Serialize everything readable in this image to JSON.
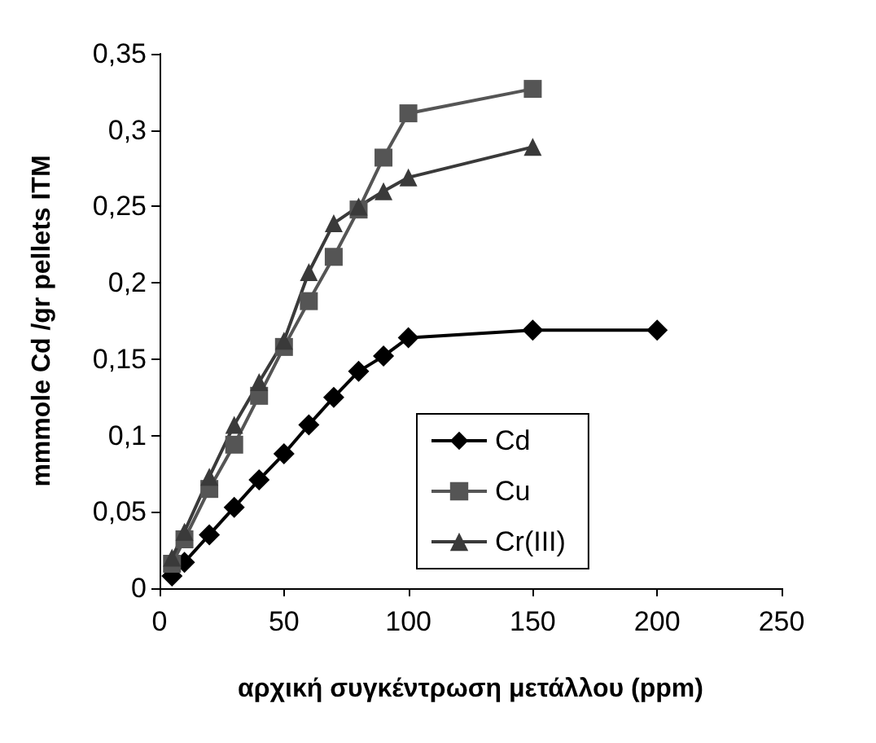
{
  "chart_data": {
    "type": "line",
    "xlabel": "αρχική συγκέντρωση μετάλλου (ppm)",
    "ylabel": "mmmole Cd /gr pellets ITM",
    "xlim": [
      0,
      250
    ],
    "xticks": [
      0,
      50,
      100,
      150,
      200,
      250
    ],
    "ylim": [
      0,
      0.35
    ],
    "yticks": [
      0,
      {
        "value": 0.05,
        "label": "0,05"
      },
      {
        "value": 0.1,
        "label": "0,1"
      },
      {
        "value": 0.15,
        "label": "0,15"
      },
      {
        "value": 0.2,
        "label": "0,2"
      },
      {
        "value": 0.25,
        "label": "0,25"
      },
      {
        "value": 0.3,
        "label": "0,3"
      },
      {
        "value": 0.35,
        "label": "0,35"
      }
    ],
    "grid": false,
    "legend": "bottom right",
    "series": [
      {
        "name": "Cd",
        "color": "#000000",
        "marker": "diamond",
        "x": [
          5,
          10,
          20,
          30,
          40,
          50,
          60,
          70,
          80,
          90,
          100,
          150,
          200
        ],
        "values": [
          0.008,
          0.017,
          0.035,
          0.053,
          0.071,
          0.088,
          0.107,
          0.125,
          0.142,
          0.152,
          0.164,
          0.169,
          0.169
        ]
      },
      {
        "name": "Cu",
        "color": "#555555",
        "marker": "square",
        "x": [
          5,
          10,
          20,
          30,
          40,
          50,
          60,
          70,
          80,
          90,
          100,
          150
        ],
        "values": [
          0.016,
          0.032,
          0.065,
          0.094,
          0.126,
          0.158,
          0.188,
          0.217,
          0.248,
          0.282,
          0.311,
          0.327
        ]
      },
      {
        "name": "Cr(III)",
        "color": "#3a3a3a",
        "marker": "triangle",
        "x": [
          5,
          10,
          20,
          30,
          40,
          50,
          60,
          70,
          80,
          90,
          100,
          150
        ],
        "values": [
          0.02,
          0.037,
          0.073,
          0.107,
          0.135,
          0.162,
          0.207,
          0.239,
          0.25,
          0.26,
          0.269,
          0.289
        ]
      }
    ]
  }
}
